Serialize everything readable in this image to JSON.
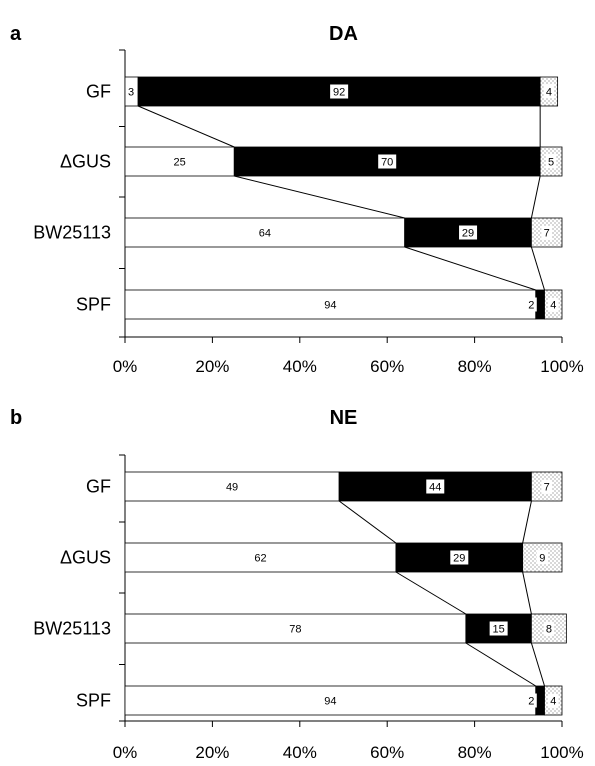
{
  "chart_data": [
    {
      "type": "bar",
      "orientation": "horizontal-stacked-percent",
      "panel_label": "a",
      "title": "DA",
      "categories": [
        "GF",
        "ΔGUS",
        "BW25113",
        "SPF"
      ],
      "series": [
        {
          "values": [
            3,
            25,
            64,
            94
          ],
          "color": "#ffffff",
          "fill": "white"
        },
        {
          "values": [
            92,
            70,
            29,
            2
          ],
          "color": "#000000",
          "fill": "black"
        },
        {
          "values": [
            4,
            5,
            7,
            4
          ],
          "color": "#f0f0f0",
          "fill": "dotted"
        }
      ],
      "xlim": [
        0,
        100
      ],
      "x_ticks": [
        "0%",
        "20%",
        "40%",
        "60%",
        "80%",
        "100%"
      ],
      "grid": false,
      "connector_lines": true
    },
    {
      "type": "bar",
      "orientation": "horizontal-stacked-percent",
      "panel_label": "b",
      "title": "NE",
      "categories": [
        "GF",
        "ΔGUS",
        "BW25113",
        "SPF"
      ],
      "series": [
        {
          "values": [
            49,
            62,
            78,
            94
          ],
          "color": "#ffffff",
          "fill": "white"
        },
        {
          "values": [
            44,
            29,
            15,
            2
          ],
          "color": "#000000",
          "fill": "black"
        },
        {
          "values": [
            7,
            9,
            8,
            4
          ],
          "color": "#f0f0f0",
          "fill": "dotted"
        }
      ],
      "xlim": [
        0,
        100
      ],
      "x_ticks": [
        "0%",
        "20%",
        "40%",
        "60%",
        "80%",
        "100%"
      ],
      "grid": false,
      "connector_lines": true
    }
  ]
}
